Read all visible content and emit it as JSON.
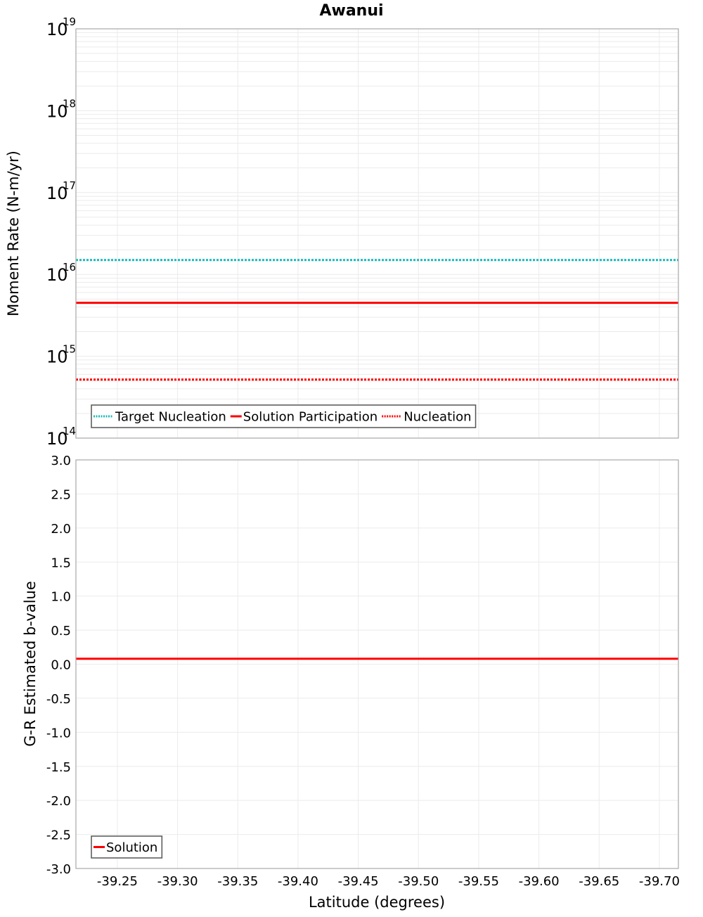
{
  "chart_data": [
    {
      "type": "line",
      "panel": "top",
      "title": "Awanui",
      "xlabel": "Latitude (degrees)",
      "ylabel": "Moment Rate (N-m/yr)",
      "yscale": "log",
      "ylim": [
        100000000000000.0,
        1e+19
      ],
      "xlim": [
        -39.2156,
        -39.7158
      ],
      "x_inverted": true,
      "y_ticks": [
        {
          "base": "10",
          "exp": "19",
          "value": 1e+19
        },
        {
          "base": "10",
          "exp": "18",
          "value": 1e+18
        },
        {
          "base": "10",
          "exp": "17",
          "value": 1e+17
        },
        {
          "base": "10",
          "exp": "16",
          "value": 1e+16
        },
        {
          "base": "10",
          "exp": "15",
          "value": 1000000000000000.0
        },
        {
          "base": "10",
          "exp": "14",
          "value": 100000000000000.0
        }
      ],
      "grid": true,
      "legend_position": "lower-left",
      "x": [
        -39.2156,
        -39.341,
        -39.472,
        -39.594,
        -39.7158
      ],
      "series": [
        {
          "name": "Target Nucleation",
          "color": "#1fb8b8",
          "style": "dotted",
          "values": [
            1.5e+16,
            1.5e+16,
            1.5e+16,
            1.5e+16,
            1.5e+16
          ]
        },
        {
          "name": "Solution Participation",
          "color": "#ff0000",
          "style": "solid",
          "values": [
            4500000000000000.0,
            4500000000000000.0,
            4500000000000000.0,
            4500000000000000.0,
            4500000000000000.0
          ]
        },
        {
          "name": "Nucleation",
          "color": "#ff0000",
          "style": "dotted",
          "values": [
            520000000000000.0,
            520000000000000.0,
            520000000000000.0,
            520000000000000.0,
            520000000000000.0
          ]
        }
      ]
    },
    {
      "type": "line",
      "panel": "bottom",
      "xlabel": "Latitude (degrees)",
      "ylabel": "G-R Estimated b-value",
      "yscale": "linear",
      "ylim": [
        -3.0,
        3.0
      ],
      "xlim": [
        -39.2156,
        -39.7158
      ],
      "x_inverted": true,
      "y_ticks": [
        "3.0",
        "2.5",
        "2.0",
        "1.5",
        "1.0",
        "0.5",
        "0.0",
        "-0.5",
        "-1.0",
        "-1.5",
        "-2.0",
        "-2.5",
        "-3.0"
      ],
      "x_ticks": [
        "-39.25",
        "-39.30",
        "-39.35",
        "-39.40",
        "-39.45",
        "-39.50",
        "-39.55",
        "-39.60",
        "-39.65",
        "-39.70"
      ],
      "grid": true,
      "legend_position": "lower-left",
      "x": [
        -39.2156,
        -39.341,
        -39.472,
        -39.594,
        -39.7158
      ],
      "series": [
        {
          "name": "Solution",
          "color": "#ff0000",
          "style": "solid",
          "values": [
            0.08,
            0.08,
            0.08,
            0.08,
            0.08
          ]
        }
      ]
    }
  ],
  "colors": {
    "grid": "#ebebeb",
    "frame": "#a8a8a8",
    "legend_border": "#555555"
  }
}
